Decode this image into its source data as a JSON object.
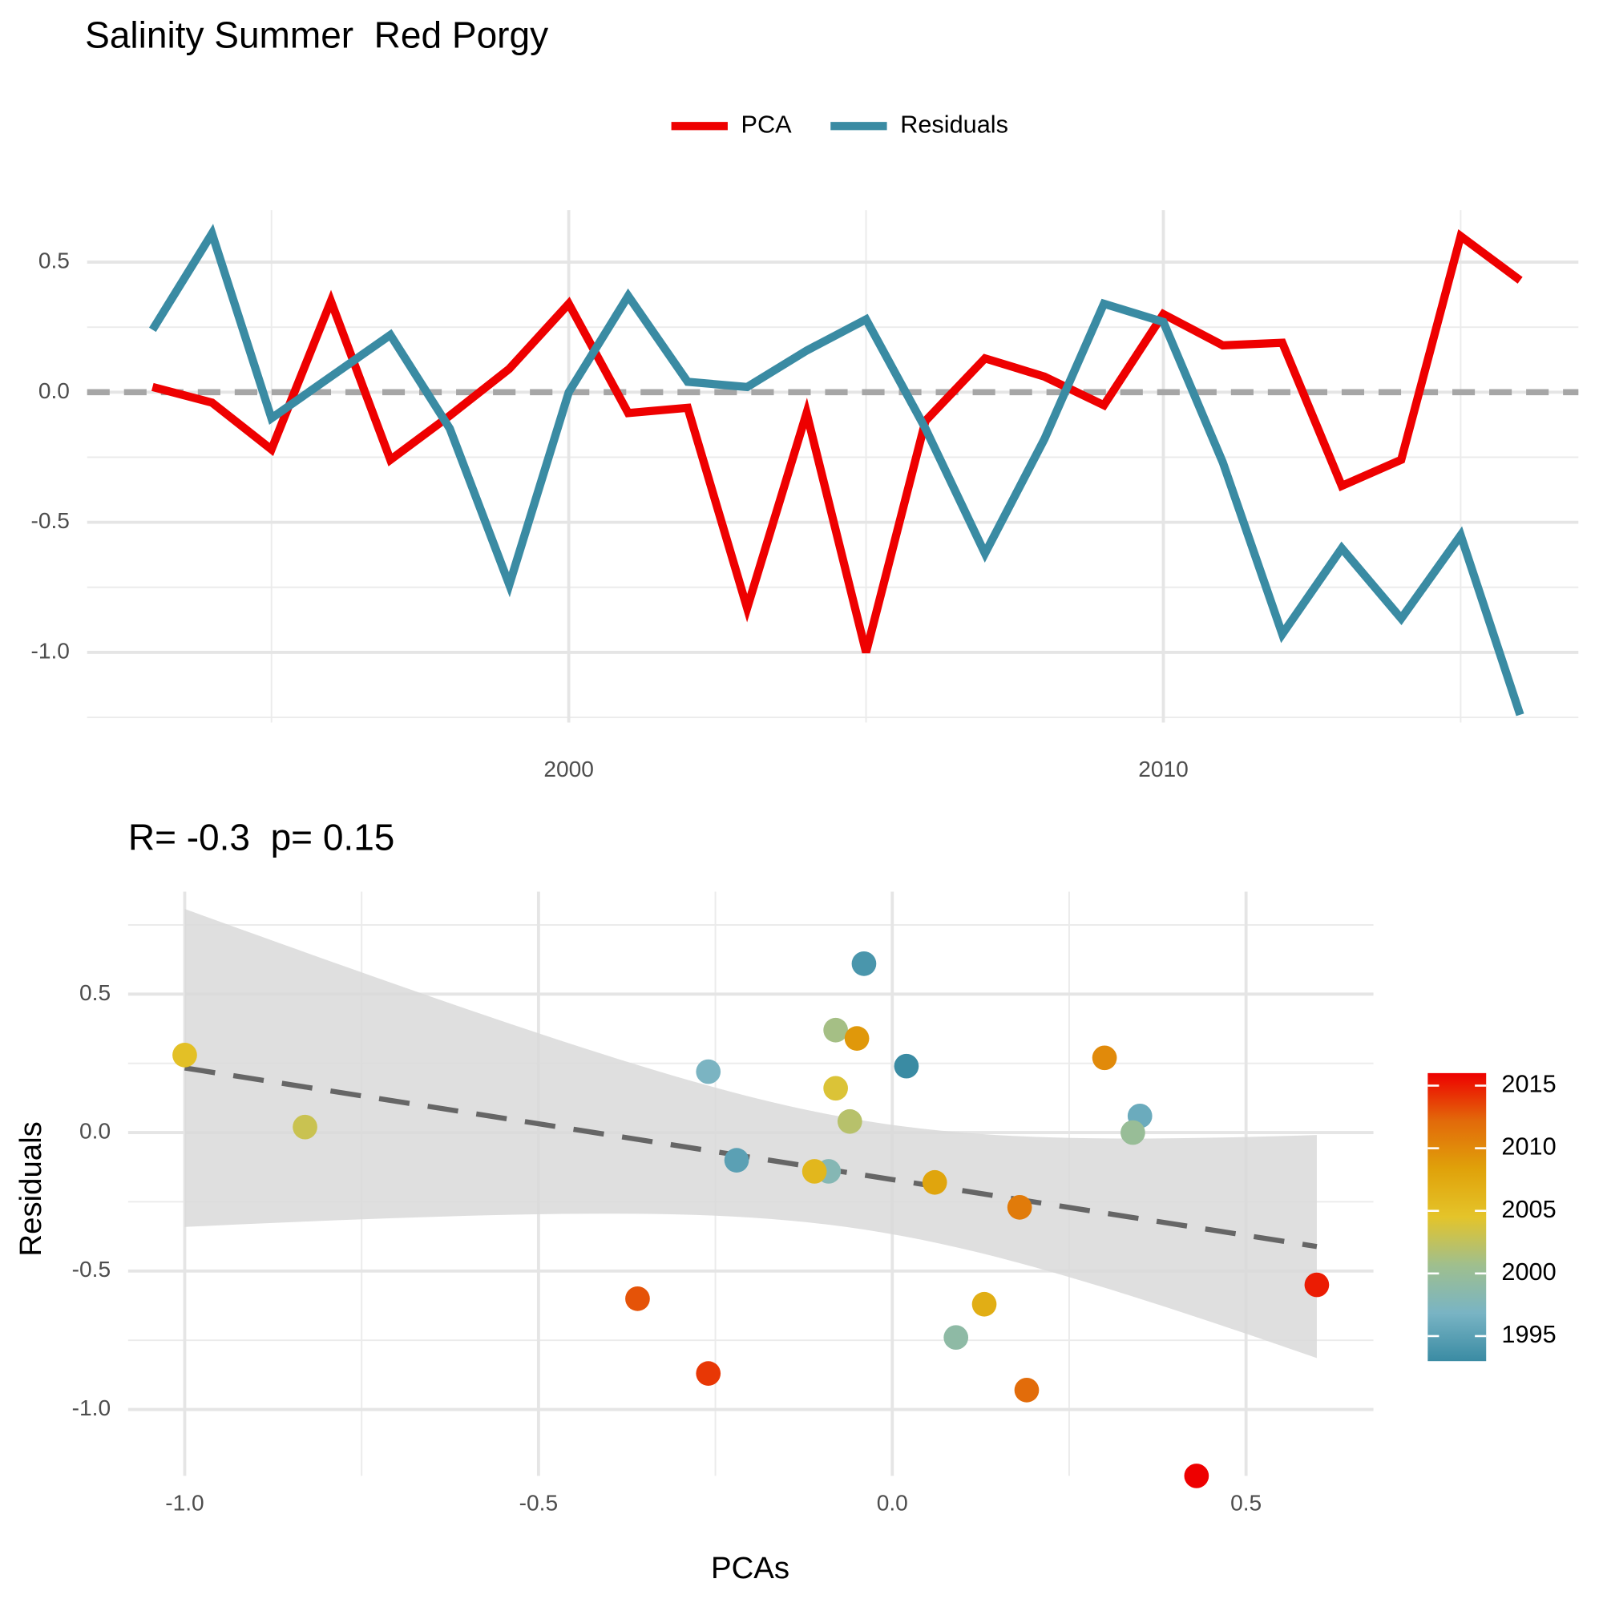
{
  "chart_data": [
    {
      "type": "line",
      "title": "Salinity Summer  Red Porgy",
      "x": [
        1993,
        1994,
        1995,
        1996,
        1997,
        1998,
        1999,
        2000,
        2001,
        2002,
        2003,
        2004,
        2005,
        2006,
        2007,
        2008,
        2009,
        2010,
        2011,
        2012,
        2013,
        2014,
        2015,
        2016
      ],
      "series": [
        {
          "name": "PCA",
          "color": "#ee0000",
          "values": [
            0.02,
            -0.04,
            -0.22,
            0.35,
            -0.26,
            -0.09,
            0.09,
            0.34,
            -0.08,
            -0.06,
            -0.83,
            -0.08,
            -1.0,
            -0.11,
            0.13,
            0.06,
            -0.05,
            0.3,
            0.18,
            0.19,
            -0.36,
            -0.26,
            0.6,
            0.43
          ]
        },
        {
          "name": "Residuals",
          "color": "#3a8ba3",
          "values": [
            0.24,
            0.61,
            -0.1,
            0.06,
            0.22,
            -0.14,
            -0.74,
            0.0,
            0.37,
            0.04,
            0.02,
            0.16,
            0.28,
            -0.14,
            -0.62,
            -0.18,
            0.34,
            0.27,
            -0.27,
            -0.93,
            -0.6,
            -0.87,
            -0.55,
            -1.24
          ]
        }
      ],
      "xlim": [
        1991.9,
        2016.98
      ],
      "xticks": [
        2000,
        2010
      ],
      "ylim": [
        -1.27,
        0.7
      ],
      "yticks": [
        {
          "value": -1.0,
          "label": "-1.0"
        },
        {
          "value": -0.5,
          "label": "-0.5"
        },
        {
          "value": 0.0,
          "label": "0.0"
        },
        {
          "value": 0.5,
          "label": "0.5"
        }
      ],
      "reference_line": 0,
      "grid": true,
      "legend": "top"
    },
    {
      "type": "scatter",
      "title": "R= -0.3  p= 0.15",
      "x_label": "PCAs",
      "y_label": "Residuals",
      "x": [
        0.02,
        -0.04,
        -0.22,
        0.35,
        -0.26,
        -0.09,
        0.09,
        0.34,
        -0.08,
        -0.06,
        -0.83,
        -0.08,
        -1.0,
        -0.11,
        0.13,
        0.06,
        -0.05,
        0.3,
        0.18,
        0.19,
        -0.36,
        -0.26,
        0.6,
        0.43
      ],
      "y": [
        0.24,
        0.61,
        -0.1,
        0.06,
        0.22,
        -0.14,
        -0.74,
        0.0,
        0.37,
        0.04,
        0.02,
        0.16,
        0.28,
        -0.14,
        -0.62,
        -0.18,
        0.34,
        0.27,
        -0.27,
        -0.93,
        -0.6,
        -0.87,
        -0.55,
        -1.24
      ],
      "color_values": [
        1993,
        1994,
        1995,
        1996,
        1997,
        1998,
        1999,
        2000,
        2001,
        2002,
        2003,
        2004,
        2005,
        2006,
        2007,
        2008,
        2009,
        2010,
        2011,
        2012,
        2013,
        2014,
        2015,
        2016
      ],
      "colorscale": [
        "#3a8ba3",
        "#79b4c4",
        "#9fbf8e",
        "#e4c42a",
        "#e0a20a",
        "#e26a0a",
        "#ee0000"
      ],
      "color_lim": [
        1993,
        2016
      ],
      "color_ticks": [
        1995,
        2000,
        2005,
        2010,
        2015
      ],
      "xlim": [
        -1.08,
        0.68
      ],
      "xticks": [
        {
          "value": -1.0,
          "label": "-1.0"
        },
        {
          "value": -0.5,
          "label": "-0.5"
        },
        {
          "value": 0.0,
          "label": "0.0"
        },
        {
          "value": 0.5,
          "label": "0.5"
        }
      ],
      "ylim": [
        -1.24,
        0.87
      ],
      "yticks": [
        {
          "value": -1.0,
          "label": "-1.0"
        },
        {
          "value": -0.5,
          "label": "-0.5"
        },
        {
          "value": 0.0,
          "label": "0.0"
        },
        {
          "value": 0.5,
          "label": "0.5"
        }
      ],
      "grid": true,
      "trend_line": true,
      "legend": "right"
    }
  ]
}
